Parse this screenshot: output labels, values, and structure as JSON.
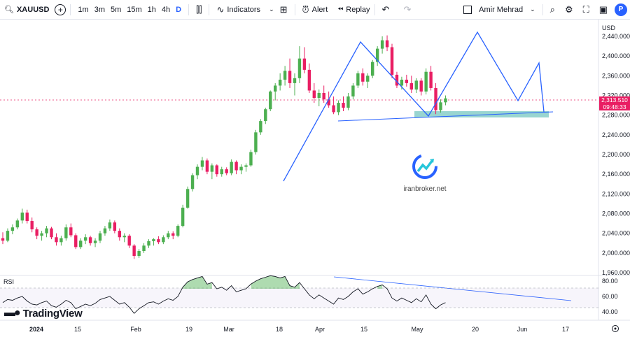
{
  "toolbar": {
    "symbol": "XAUUSD",
    "add_symbol": "+",
    "timeframes": [
      "1m",
      "3m",
      "5m",
      "15m",
      "1h",
      "4h",
      "D"
    ],
    "active_timeframe": "D",
    "indicators_label": "Indicators",
    "alert_label": "Alert",
    "replay_label": "Replay",
    "user_name": "Amir Mehrad",
    "profile_initial": "P"
  },
  "price_axis": {
    "currency": "USD",
    "ticks": [
      "2,440.000",
      "2,400.000",
      "2,360.000",
      "2,320.000",
      "2,280.000",
      "2,240.000",
      "2,200.000",
      "2,160.000",
      "2,120.000",
      "2,080.000",
      "2,040.000",
      "2,000.000",
      "1,960.000"
    ],
    "current_price": "2,313.510",
    "countdown": "09:48:33"
  },
  "rsi": {
    "label": "RSI",
    "ticks": [
      "80.00",
      "60.00",
      "40.00"
    ]
  },
  "time_axis": {
    "labels": [
      "2024",
      "15",
      "Feb",
      "19",
      "Mar",
      "18",
      "Apr",
      "15",
      "May",
      "20",
      "Jun",
      "17"
    ]
  },
  "watermark": {
    "text": "iranbroker.net"
  },
  "branding": {
    "text": "TradingView"
  },
  "colors": {
    "up": "#4caf50",
    "down": "#e91e63",
    "pattern_line": "#2962ff",
    "support_zone": "#80cbc4"
  },
  "chart_data": {
    "type": "candlestick",
    "title": "XAUUSD",
    "ylabel": "USD",
    "ylim": [
      1960,
      2450
    ],
    "candles": [
      [
        2030,
        2042,
        2018,
        2025
      ],
      [
        2025,
        2050,
        2022,
        2045
      ],
      [
        2045,
        2058,
        2038,
        2052
      ],
      [
        2052,
        2070,
        2048,
        2066
      ],
      [
        2066,
        2090,
        2060,
        2082
      ],
      [
        2082,
        2088,
        2060,
        2065
      ],
      [
        2065,
        2072,
        2042,
        2048
      ],
      [
        2048,
        2052,
        2028,
        2035
      ],
      [
        2035,
        2045,
        2025,
        2040
      ],
      [
        2040,
        2055,
        2032,
        2050
      ],
      [
        2050,
        2053,
        2028,
        2032
      ],
      [
        2032,
        2040,
        2015,
        2022
      ],
      [
        2022,
        2035,
        2015,
        2030
      ],
      [
        2030,
        2058,
        2025,
        2052
      ],
      [
        2052,
        2060,
        2032,
        2036
      ],
      [
        2036,
        2040,
        2008,
        2012
      ],
      [
        2012,
        2030,
        2008,
        2025
      ],
      [
        2025,
        2038,
        2018,
        2032
      ],
      [
        2032,
        2035,
        2015,
        2020
      ],
      [
        2020,
        2030,
        2012,
        2025
      ],
      [
        2025,
        2045,
        2020,
        2040
      ],
      [
        2040,
        2055,
        2035,
        2050
      ],
      [
        2050,
        2068,
        2045,
        2062
      ],
      [
        2062,
        2066,
        2040,
        2045
      ],
      [
        2045,
        2050,
        2025,
        2032
      ],
      [
        2032,
        2040,
        2022,
        2035
      ],
      [
        2035,
        2038,
        2010,
        2015
      ],
      [
        2015,
        2018,
        1988,
        1994
      ],
      [
        1994,
        2008,
        1990,
        2004
      ],
      [
        2004,
        2020,
        2000,
        2015
      ],
      [
        2015,
        2028,
        2010,
        2024
      ],
      [
        2024,
        2030,
        2015,
        2028
      ],
      [
        2028,
        2034,
        2018,
        2022
      ],
      [
        2022,
        2036,
        2018,
        2032
      ],
      [
        2032,
        2045,
        2028,
        2040
      ],
      [
        2040,
        2044,
        2028,
        2035
      ],
      [
        2035,
        2058,
        2032,
        2055
      ],
      [
        2055,
        2098,
        2052,
        2092
      ],
      [
        2092,
        2135,
        2090,
        2130
      ],
      [
        2130,
        2162,
        2125,
        2158
      ],
      [
        2158,
        2180,
        2150,
        2175
      ],
      [
        2175,
        2195,
        2168,
        2188
      ],
      [
        2188,
        2192,
        2160,
        2165
      ],
      [
        2165,
        2182,
        2150,
        2178
      ],
      [
        2178,
        2180,
        2155,
        2160
      ],
      [
        2160,
        2175,
        2155,
        2170
      ],
      [
        2170,
        2174,
        2158,
        2162
      ],
      [
        2162,
        2190,
        2158,
        2185
      ],
      [
        2185,
        2188,
        2160,
        2168
      ],
      [
        2168,
        2180,
        2160,
        2175
      ],
      [
        2175,
        2182,
        2165,
        2178
      ],
      [
        2178,
        2210,
        2175,
        2205
      ],
      [
        2205,
        2250,
        2200,
        2245
      ],
      [
        2245,
        2272,
        2240,
        2268
      ],
      [
        2268,
        2295,
        2262,
        2292
      ],
      [
        2292,
        2330,
        2288,
        2328
      ],
      [
        2328,
        2345,
        2310,
        2340
      ],
      [
        2340,
        2365,
        2330,
        2352
      ],
      [
        2352,
        2380,
        2340,
        2370
      ],
      [
        2370,
        2395,
        2335,
        2345
      ],
      [
        2345,
        2365,
        2320,
        2355
      ],
      [
        2355,
        2420,
        2345,
        2395
      ],
      [
        2395,
        2418,
        2365,
        2372
      ],
      [
        2372,
        2385,
        2325,
        2330
      ],
      [
        2330,
        2345,
        2305,
        2315
      ],
      [
        2315,
        2332,
        2298,
        2325
      ],
      [
        2325,
        2340,
        2305,
        2312
      ],
      [
        2312,
        2328,
        2295,
        2300
      ],
      [
        2300,
        2318,
        2282,
        2286
      ],
      [
        2286,
        2310,
        2280,
        2305
      ],
      [
        2305,
        2318,
        2288,
        2295
      ],
      [
        2295,
        2325,
        2290,
        2318
      ],
      [
        2318,
        2345,
        2312,
        2340
      ],
      [
        2340,
        2370,
        2335,
        2365
      ],
      [
        2365,
        2375,
        2340,
        2348
      ],
      [
        2348,
        2365,
        2335,
        2360
      ],
      [
        2360,
        2392,
        2355,
        2388
      ],
      [
        2388,
        2420,
        2380,
        2415
      ],
      [
        2415,
        2440,
        2405,
        2432
      ],
      [
        2432,
        2442,
        2410,
        2418
      ],
      [
        2418,
        2425,
        2355,
        2362
      ],
      [
        2362,
        2368,
        2335,
        2340
      ],
      [
        2340,
        2358,
        2332,
        2352
      ],
      [
        2352,
        2362,
        2338,
        2345
      ],
      [
        2345,
        2360,
        2325,
        2332
      ],
      [
        2332,
        2355,
        2325,
        2350
      ],
      [
        2350,
        2355,
        2320,
        2328
      ],
      [
        2328,
        2375,
        2322,
        2368
      ],
      [
        2368,
        2380,
        2330,
        2335
      ],
      [
        2335,
        2345,
        2282,
        2290
      ],
      [
        2290,
        2312,
        2285,
        2306
      ],
      [
        2306,
        2320,
        2300,
        2314
      ]
    ],
    "rsi_values": [
      52,
      56,
      55,
      58,
      60,
      54,
      50,
      49,
      52,
      54,
      48,
      46,
      50,
      55,
      52,
      44,
      47,
      50,
      48,
      51,
      56,
      58,
      60,
      55,
      50,
      52,
      46,
      38,
      44,
      48,
      52,
      53,
      50,
      54,
      57,
      55,
      60,
      72,
      79,
      82,
      84,
      86,
      76,
      78,
      70,
      72,
      68,
      74,
      66,
      68,
      70,
      76,
      80,
      83,
      85,
      87,
      86,
      84,
      86,
      74,
      72,
      78,
      70,
      62,
      57,
      62,
      58,
      54,
      50,
      58,
      56,
      60,
      66,
      70,
      63,
      66,
      70,
      73,
      75,
      70,
      58,
      54,
      58,
      55,
      52,
      57,
      53,
      62,
      50,
      44,
      49,
      52
    ]
  }
}
